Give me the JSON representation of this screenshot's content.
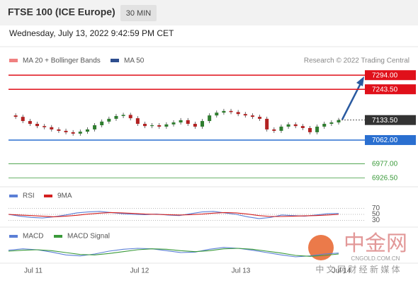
{
  "header": {
    "title": "FTSE 100 (ICE Europe)",
    "interval": "30 MIN",
    "datetime": "Wednesday, July 13, 2022 9:42:59 PM CET"
  },
  "chart_data": [
    {
      "type": "candlestick",
      "legend": [
        "MA 20 + Bollinger Bands",
        "MA 50"
      ],
      "legend_colors": [
        "#f08080",
        "#2e4e8f"
      ],
      "credit": "Research © 2022 Trading Central",
      "close": [
        7150,
        7145,
        7130,
        7120,
        7112,
        7108,
        7100,
        7095,
        7090,
        7085,
        7092,
        7100,
        7115,
        7128,
        7138,
        7148,
        7152,
        7140,
        7120,
        7112,
        7115,
        7110,
        7118,
        7125,
        7133,
        7120,
        7110,
        7130,
        7150,
        7160,
        7166,
        7162,
        7155,
        7150,
        7145,
        7138,
        7100,
        7095,
        7110,
        7118,
        7112,
        7105,
        7090,
        7110,
        7120,
        7125,
        7133.5
      ],
      "ylim": [
        6900,
        7330
      ],
      "levels": [
        {
          "value": 7294,
          "label": "7294.00",
          "color": "#e0101a",
          "style": "box"
        },
        {
          "value": 7243.5,
          "label": "7243.50",
          "color": "#e0101a",
          "style": "box"
        },
        {
          "value": 7133.5,
          "label": "7133.50",
          "color": "#333333",
          "style": "current"
        },
        {
          "value": 7062,
          "label": "7062.00",
          "color": "#2a6fd0",
          "style": "box"
        },
        {
          "value": 6977,
          "label": "6977.00",
          "color": "#3a9a3a",
          "style": "text"
        },
        {
          "value": 6926.5,
          "label": "6926.50",
          "color": "#3a9a3a",
          "style": "text"
        }
      ],
      "x_labels": [
        "Jul 11",
        "Jul 12",
        "Jul 13",
        "Jul 14"
      ]
    },
    {
      "type": "line",
      "series": [
        {
          "name": "RSI",
          "color": "#5b7fd6",
          "values": [
            50,
            44,
            40,
            38,
            42,
            48,
            55,
            58,
            60,
            56,
            52,
            50,
            49,
            51,
            48,
            46,
            52,
            58,
            60,
            55,
            50,
            42,
            36,
            40,
            48,
            46,
            44,
            48,
            52,
            53
          ]
        },
        {
          "name": "9MA",
          "color": "#d42020",
          "values": [
            50,
            48,
            46,
            44,
            42,
            44,
            47,
            51,
            54,
            56,
            55,
            53,
            51,
            50,
            49,
            48,
            49,
            51,
            54,
            56,
            55,
            51,
            46,
            43,
            43,
            44,
            45,
            46,
            48,
            50
          ]
        }
      ],
      "ylim": [
        10,
        90
      ],
      "yticks": [
        70,
        50,
        30
      ]
    },
    {
      "type": "line",
      "series": [
        {
          "name": "MACD",
          "color": "#5b7fd6",
          "values": [
            2,
            5,
            3,
            -2,
            -8,
            -10,
            -6,
            0,
            4,
            6,
            5,
            1,
            -3,
            -2,
            4,
            8,
            6,
            2,
            -3,
            -8,
            -12,
            -10,
            -6,
            -4
          ]
        },
        {
          "name": "MACD Signal",
          "color": "#3a9a3a",
          "values": [
            0,
            2,
            3,
            1,
            -3,
            -7,
            -8,
            -5,
            -1,
            3,
            5,
            4,
            1,
            -1,
            1,
            5,
            6,
            4,
            0,
            -4,
            -9,
            -11,
            -9,
            -6
          ]
        }
      ],
      "ylim": [
        -30,
        30
      ]
    }
  ],
  "watermark": {
    "logo": "中金网",
    "site": "CNGOLD.COM.CN",
    "tagline": "中 文 网 财 经 新 媒 体"
  }
}
